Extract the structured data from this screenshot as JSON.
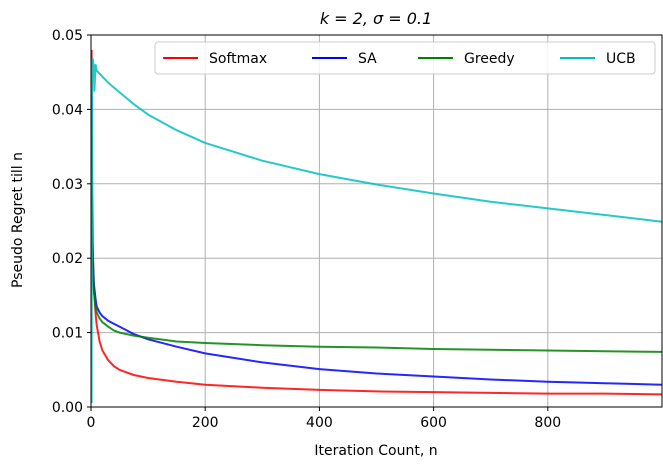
{
  "chart_data": {
    "type": "line",
    "title": "k = 2, σ = 0.1",
    "xlabel": "Iteration Count, n",
    "ylabel": "Pseudo Regret till n",
    "xlim": [
      0,
      1000
    ],
    "ylim": [
      0,
      0.05
    ],
    "xticks": [
      0,
      200,
      400,
      600,
      800
    ],
    "xtick_labels": [
      "0",
      "200",
      "400",
      "600",
      "800"
    ],
    "yticks": [
      0.0,
      0.01,
      0.02,
      0.03,
      0.04,
      0.05
    ],
    "ytick_labels": [
      "0.00",
      "0.01",
      "0.02",
      "0.03",
      "0.04",
      "0.05"
    ],
    "grid": true,
    "legend_position": "top",
    "series": [
      {
        "name": "Softmax",
        "color": "#ff0000",
        "x": [
          1,
          2,
          3,
          5,
          8,
          10,
          15,
          20,
          30,
          40,
          50,
          75,
          100,
          150,
          200,
          300,
          400,
          500,
          600,
          700,
          800,
          900,
          1000
        ],
        "y": [
          0.048,
          0.032,
          0.022,
          0.016,
          0.0125,
          0.011,
          0.0088,
          0.0076,
          0.0063,
          0.0055,
          0.005,
          0.0043,
          0.0039,
          0.0034,
          0.003,
          0.0026,
          0.0023,
          0.0021,
          0.002,
          0.0019,
          0.0018,
          0.0018,
          0.0017
        ]
      },
      {
        "name": "SA",
        "color": "#0000ff",
        "x": [
          1,
          2,
          3,
          5,
          8,
          10,
          15,
          20,
          30,
          40,
          50,
          75,
          100,
          150,
          200,
          300,
          400,
          500,
          600,
          700,
          800,
          900,
          1000
        ],
        "y": [
          0.042,
          0.026,
          0.02,
          0.0165,
          0.0145,
          0.0135,
          0.0127,
          0.0122,
          0.0116,
          0.0112,
          0.0108,
          0.0098,
          0.0091,
          0.0081,
          0.0072,
          0.006,
          0.0051,
          0.0045,
          0.0041,
          0.0037,
          0.0034,
          0.0032,
          0.003
        ]
      },
      {
        "name": "Greedy",
        "color": "#008000",
        "x": [
          1,
          2,
          3,
          5,
          8,
          10,
          15,
          20,
          30,
          40,
          50,
          75,
          100,
          150,
          200,
          300,
          400,
          500,
          600,
          700,
          800,
          900,
          1000
        ],
        "y": [
          0.04,
          0.024,
          0.019,
          0.0155,
          0.0135,
          0.0127,
          0.0119,
          0.0114,
          0.0108,
          0.0103,
          0.01,
          0.0096,
          0.0093,
          0.0088,
          0.0086,
          0.0083,
          0.0081,
          0.008,
          0.0078,
          0.0077,
          0.0076,
          0.0075,
          0.0074
        ]
      },
      {
        "name": "UCB",
        "color": "#00bfbf",
        "x": [
          1,
          2,
          3,
          4,
          5,
          6,
          8,
          10,
          15,
          20,
          30,
          50,
          75,
          100,
          150,
          200,
          300,
          400,
          500,
          600,
          700,
          800,
          900,
          1000
        ],
        "y": [
          0.0005,
          0.044,
          0.0468,
          0.0462,
          0.0455,
          0.0425,
          0.046,
          0.0452,
          0.0448,
          0.0444,
          0.0436,
          0.0423,
          0.0407,
          0.0393,
          0.0372,
          0.0355,
          0.0331,
          0.0313,
          0.0299,
          0.0287,
          0.0276,
          0.0267,
          0.0258,
          0.0249
        ]
      }
    ]
  }
}
